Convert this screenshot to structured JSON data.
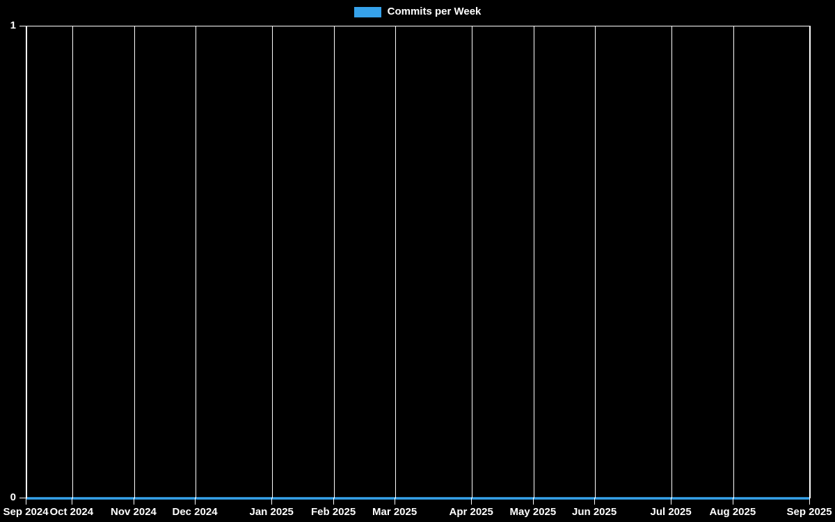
{
  "colors": {
    "background": "#000000",
    "grid": "#ffffff",
    "text": "#ffffff",
    "accent": "#36a2eb"
  },
  "legend": {
    "label": "Commits per Week",
    "swatch_color": "#36a2eb",
    "position": "top"
  },
  "chart_data": {
    "type": "line",
    "title": "Commits per Week",
    "xlabel": "",
    "ylabel": "",
    "ylim": [
      0,
      1
    ],
    "y_ticks": [
      "0",
      "1"
    ],
    "grid": true,
    "legend_position": "top",
    "x_tick_labels": [
      "Sep 2024",
      "Oct 2024",
      "Nov 2024",
      "Dec 2024",
      "Jan 2025",
      "Feb 2025",
      "Mar 2025",
      "Apr 2025",
      "May 2025",
      "Jun 2025",
      "Jul 2025",
      "Aug 2025",
      "Sep 2025"
    ],
    "x_tick_week_offsets": [
      0,
      3,
      7,
      11,
      16,
      20,
      24,
      29,
      33,
      37,
      42,
      46,
      51
    ],
    "series": [
      {
        "name": "Commits per Week",
        "color": "#36a2eb",
        "line_width": 3.5,
        "values": [
          0,
          0,
          0,
          0,
          0,
          0,
          0,
          0,
          0,
          0,
          0,
          0,
          0,
          0,
          0,
          0,
          0,
          0,
          0,
          0,
          0,
          0,
          0,
          0,
          0,
          0,
          0,
          0,
          0,
          0,
          0,
          0,
          0,
          0,
          0,
          0,
          0,
          0,
          0,
          0,
          0,
          0,
          0,
          0,
          0,
          0,
          0,
          0,
          0,
          0,
          0,
          0
        ]
      }
    ]
  }
}
